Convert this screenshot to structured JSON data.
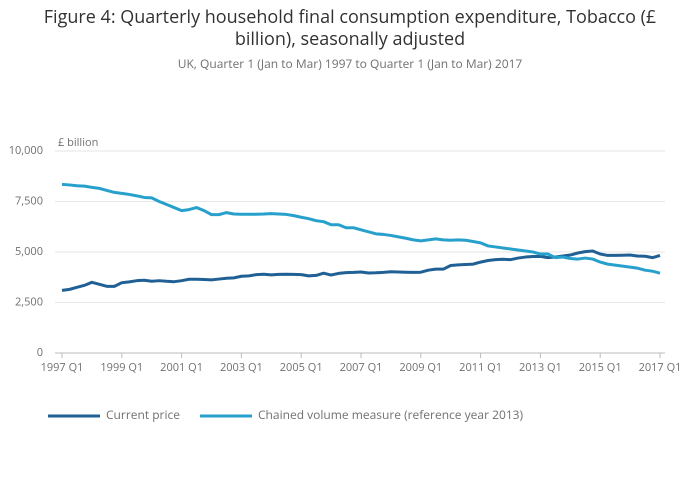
{
  "chart_data": {
    "type": "line",
    "title": "Figure 4: Quarterly household final consumption expenditure, Tobacco (£",
    "title_line2": "billion), seasonally adjusted",
    "subtitle": "UK, Quarter 1 (Jan to Mar) 1997 to Quarter 1 (Jan to Mar) 2017",
    "y_label": "£ billion",
    "categories": [
      "1997 Q1",
      null,
      null,
      null,
      null,
      null,
      null,
      null,
      "1999 Q1",
      null,
      null,
      null,
      null,
      null,
      null,
      null,
      "2001 Q1",
      null,
      null,
      null,
      null,
      null,
      null,
      null,
      "2003 Q1",
      null,
      null,
      null,
      null,
      null,
      null,
      null,
      "2005 Q1",
      null,
      null,
      null,
      null,
      null,
      null,
      null,
      "2007 Q1",
      null,
      null,
      null,
      null,
      null,
      null,
      null,
      "2009 Q1",
      null,
      null,
      null,
      null,
      null,
      null,
      null,
      "2011 Q1",
      null,
      null,
      null,
      null,
      null,
      null,
      null,
      "2013 Q1",
      null,
      null,
      null,
      null,
      null,
      null,
      null,
      "2015 Q1",
      null,
      null,
      null,
      null,
      null,
      null,
      null,
      "2017 Q1"
    ],
    "series": [
      {
        "name": "Current price",
        "color": "#206095",
        "values": [
          3100,
          3150,
          3250,
          3350,
          3500,
          3400,
          3300,
          3300,
          3480,
          3520,
          3580,
          3600,
          3550,
          3580,
          3550,
          3530,
          3580,
          3650,
          3650,
          3640,
          3620,
          3660,
          3700,
          3720,
          3800,
          3820,
          3880,
          3900,
          3870,
          3890,
          3900,
          3890,
          3880,
          3820,
          3840,
          3950,
          3860,
          3940,
          3980,
          3990,
          4010,
          3960,
          3970,
          3990,
          4020,
          4010,
          4000,
          3990,
          4000,
          4100,
          4150,
          4150,
          4330,
          4360,
          4380,
          4400,
          4500,
          4580,
          4620,
          4640,
          4620,
          4700,
          4750,
          4780,
          4780,
          4720,
          4750,
          4800,
          4850,
          4950,
          5020,
          5050,
          4900,
          4830,
          4830,
          4840,
          4850,
          4800,
          4790,
          4720,
          4830
        ]
      },
      {
        "name": "Chained volume measure (reference year 2013)",
        "color": "#27a0cc",
        "values": [
          8350,
          8320,
          8280,
          8260,
          8200,
          8150,
          8050,
          7950,
          7900,
          7850,
          7780,
          7700,
          7680,
          7500,
          7350,
          7200,
          7050,
          7100,
          7200,
          7050,
          6850,
          6850,
          6950,
          6880,
          6870,
          6870,
          6870,
          6880,
          6900,
          6880,
          6860,
          6800,
          6720,
          6650,
          6550,
          6500,
          6350,
          6350,
          6200,
          6200,
          6100,
          6000,
          5900,
          5870,
          5820,
          5750,
          5680,
          5600,
          5550,
          5600,
          5650,
          5600,
          5580,
          5600,
          5580,
          5520,
          5450,
          5300,
          5250,
          5200,
          5150,
          5100,
          5050,
          5000,
          4900,
          4900,
          4720,
          4750,
          4680,
          4650,
          4700,
          4650,
          4500,
          4400,
          4350,
          4300,
          4250,
          4200,
          4100,
          4050,
          3950
        ]
      }
    ],
    "ylim": [
      0,
      10000
    ],
    "yticks": [
      0,
      {
        "value": 2500,
        "label": "2,500"
      },
      {
        "value": 5000,
        "label": "5,000"
      },
      {
        "value": 7500,
        "label": "7,500"
      },
      {
        "value": 10000,
        "label": "10,000"
      }
    ],
    "grid": true,
    "legend": "bottom"
  }
}
